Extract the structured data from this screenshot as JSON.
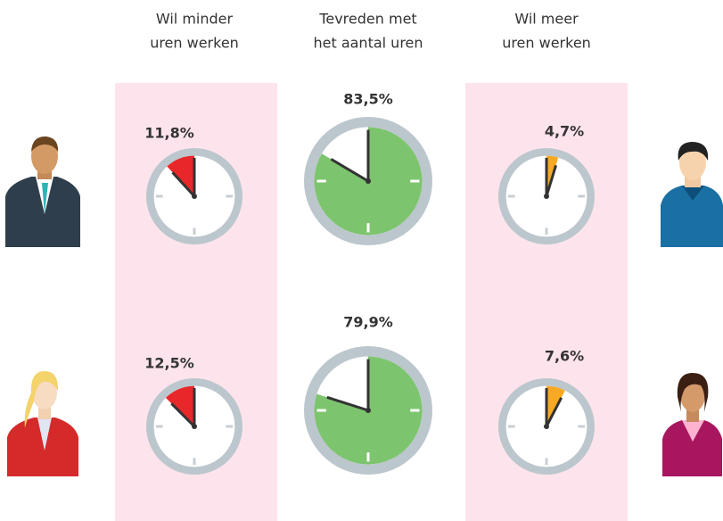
{
  "chart_data": {
    "type": "clock",
    "categories": [
      [
        "Wil minder",
        "uren werken"
      ],
      [
        "Tevreden met",
        "het  aantal uren"
      ],
      [
        "Wil meer",
        "uren werken"
      ]
    ],
    "colors": [
      "#e8272b",
      "#7dc46e",
      "#f8a924"
    ],
    "series": [
      {
        "values": [
          11.8,
          83.5,
          4.7
        ],
        "value_labels": [
          "11,8%",
          "83,5%",
          "4,7%"
        ]
      },
      {
        "values": [
          12.5,
          79.9,
          7.6
        ],
        "value_labels": [
          "12,5%",
          "79,9%",
          "7,6%"
        ]
      }
    ]
  }
}
